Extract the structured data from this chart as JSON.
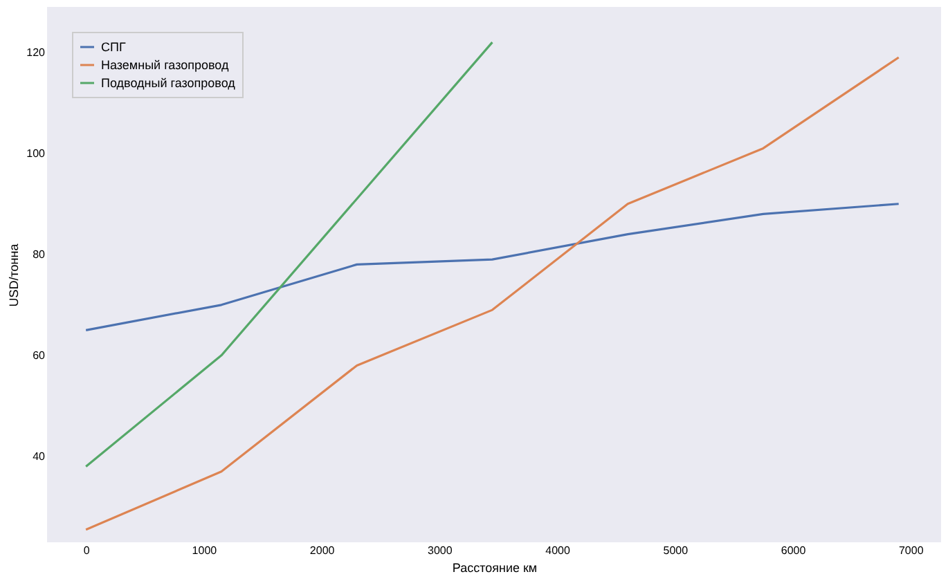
{
  "chart_data": {
    "type": "line",
    "xlabel": "Расстояние км",
    "ylabel": "USD/тонна",
    "x": [
      0,
      1150,
      2300,
      3450,
      4600,
      5750,
      6900
    ],
    "series": [
      {
        "name": "СПГ",
        "color": "#4c72b0",
        "values": [
          65,
          70,
          78,
          79,
          84,
          88,
          90
        ]
      },
      {
        "name": "Наземный газопровод",
        "color": "#dd8452",
        "values": [
          25.5,
          37,
          58,
          69,
          90,
          101,
          119
        ]
      },
      {
        "name": "Подводный газопровод",
        "color": "#55a868",
        "x": [
          0,
          1150,
          2300,
          3450
        ],
        "values": [
          38,
          60,
          91,
          122
        ]
      }
    ],
    "xlim": [
      -330,
      7260
    ],
    "ylim": [
      23,
      129
    ],
    "xticks": [
      0,
      1000,
      2000,
      3000,
      4000,
      5000,
      6000,
      7000
    ],
    "yticks": [
      40,
      60,
      80,
      100,
      120
    ],
    "grid": false,
    "legend": "top left",
    "marker": "none",
    "line_style": "solid"
  }
}
